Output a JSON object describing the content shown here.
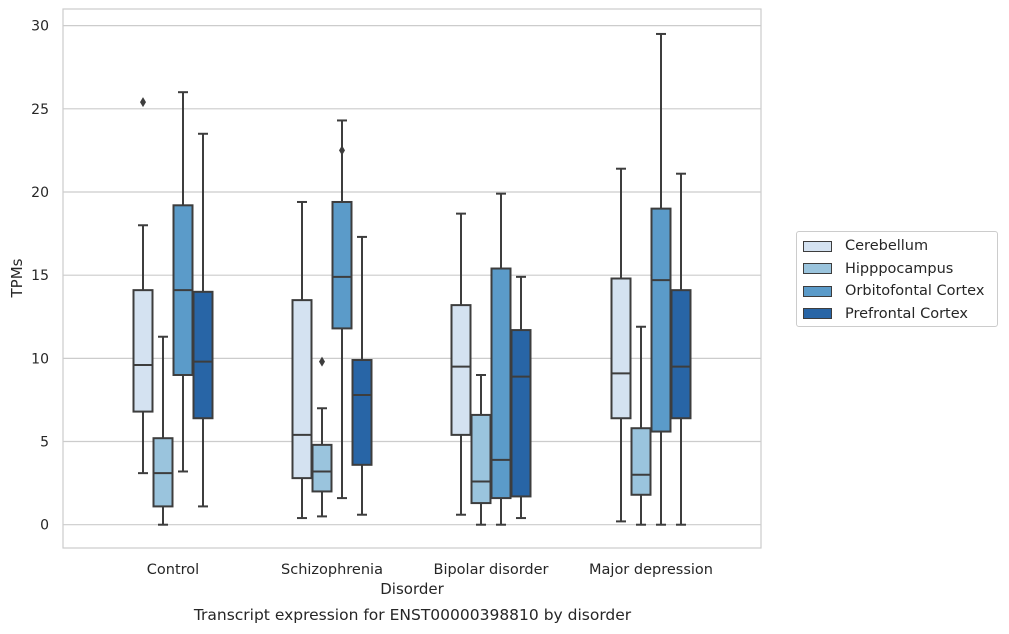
{
  "chart_data": {
    "type": "box",
    "xlabel": "Disorder",
    "ylabel": "TPMs",
    "caption": "Transcript expression for ENST00000398810 by disorder",
    "ylim": [
      -1.4,
      31
    ],
    "yticks": [
      0,
      5,
      10,
      15,
      20,
      25,
      30
    ],
    "grid": "horizontal",
    "legend_position": "right",
    "categories": [
      "Control",
      "Schizophrenia",
      "Bipolar disorder",
      "Major depression"
    ],
    "series": [
      {
        "name": "Cerebellum",
        "color": "#d4e2f1",
        "boxes": [
          {
            "whislo": 3.1,
            "q1": 6.8,
            "med": 9.6,
            "q3": 14.1,
            "whishi": 18.0,
            "fliers": [
              25.4
            ]
          },
          {
            "whislo": 0.4,
            "q1": 2.8,
            "med": 5.4,
            "q3": 13.5,
            "whishi": 19.4,
            "fliers": []
          },
          {
            "whislo": 0.6,
            "q1": 5.4,
            "med": 9.5,
            "q3": 13.2,
            "whishi": 18.7,
            "fliers": []
          },
          {
            "whislo": 0.2,
            "q1": 6.4,
            "med": 9.1,
            "q3": 14.8,
            "whishi": 21.4,
            "fliers": []
          }
        ]
      },
      {
        "name": "Hipppocampus",
        "color": "#9ac4dd",
        "boxes": [
          {
            "whislo": 0.0,
            "q1": 1.1,
            "med": 3.1,
            "q3": 5.2,
            "whishi": 11.3,
            "fliers": []
          },
          {
            "whislo": 0.5,
            "q1": 2.0,
            "med": 3.2,
            "q3": 4.8,
            "whishi": 7.0,
            "fliers": [
              9.8
            ]
          },
          {
            "whislo": 0.0,
            "q1": 1.3,
            "med": 2.6,
            "q3": 6.6,
            "whishi": 9.0,
            "fliers": []
          },
          {
            "whislo": 0.0,
            "q1": 1.8,
            "med": 3.0,
            "q3": 5.8,
            "whishi": 11.9,
            "fliers": []
          }
        ]
      },
      {
        "name": "Orbitofontal Cortex",
        "color": "#5b9bc9",
        "boxes": [
          {
            "whislo": 3.2,
            "q1": 9.0,
            "med": 14.1,
            "q3": 19.2,
            "whishi": 26.0,
            "fliers": []
          },
          {
            "whislo": 1.6,
            "q1": 11.8,
            "med": 14.9,
            "q3": 19.4,
            "whishi": 24.3,
            "fliers": [
              22.5
            ]
          },
          {
            "whislo": 0.0,
            "q1": 1.6,
            "med": 3.9,
            "q3": 15.4,
            "whishi": 19.9,
            "fliers": []
          },
          {
            "whislo": 0.0,
            "q1": 5.6,
            "med": 14.7,
            "q3": 19.0,
            "whishi": 29.5,
            "fliers": []
          }
        ]
      },
      {
        "name": "Prefrontal Cortex",
        "color": "#2865a6",
        "boxes": [
          {
            "whislo": 1.1,
            "q1": 6.4,
            "med": 9.8,
            "q3": 14.0,
            "whishi": 23.5,
            "fliers": []
          },
          {
            "whislo": 0.6,
            "q1": 3.6,
            "med": 7.8,
            "q3": 9.9,
            "whishi": 17.3,
            "fliers": []
          },
          {
            "whislo": 0.4,
            "q1": 1.7,
            "med": 8.9,
            "q3": 11.7,
            "whishi": 14.9,
            "fliers": []
          },
          {
            "whislo": 0.0,
            "q1": 6.4,
            "med": 9.5,
            "q3": 14.1,
            "whishi": 21.1,
            "fliers": []
          }
        ]
      }
    ]
  }
}
